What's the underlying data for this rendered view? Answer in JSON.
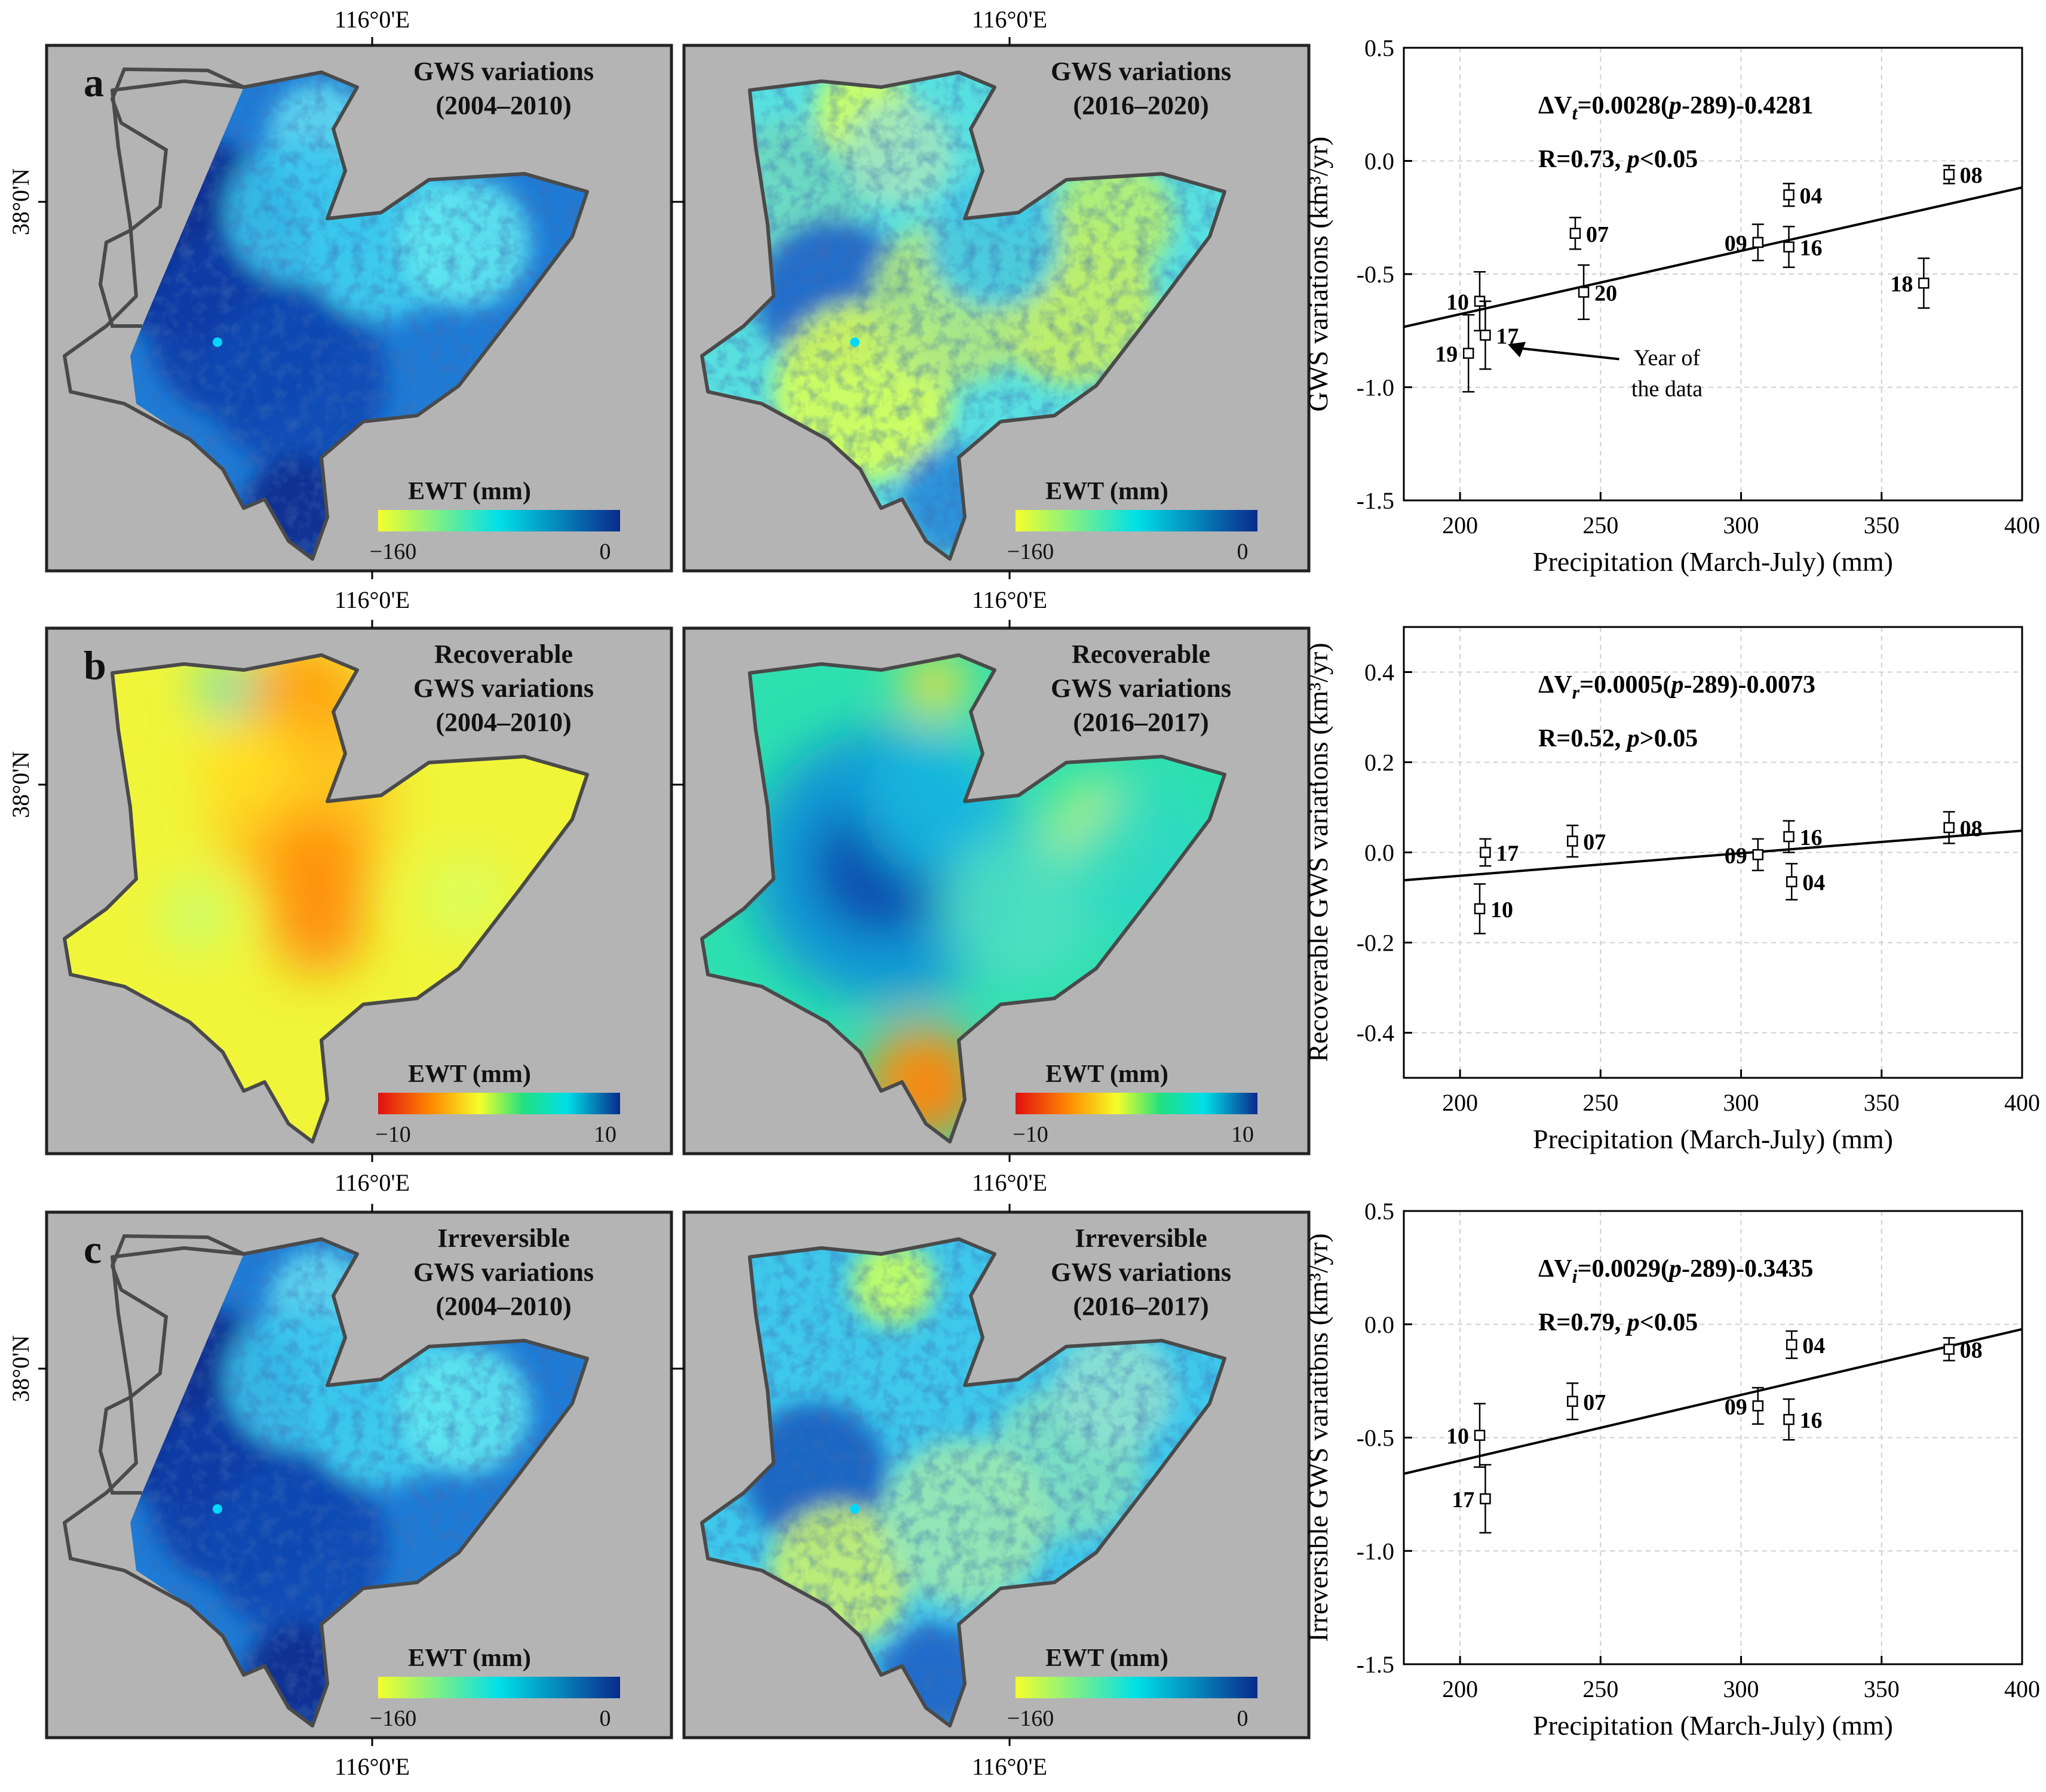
{
  "colors": {
    "map_bg": "#b4b4b4",
    "boundary": "#4a4a4a",
    "panel_border": "#222222",
    "line": "#000000",
    "grid": "#cfcfcf",
    "ewt_deep": "#0a2a8c",
    "ewt_mid": "#00e0e8",
    "ewt_yellow": "#f4ff2a",
    "rec_red": "#e01010",
    "rec_orange": "#ff8a00"
  },
  "rows": [
    {
      "letter": "a",
      "maps": [
        {
          "title_lines": [
            "GWS variations",
            "(2004–2010)"
          ],
          "ewt_label": "EWT (mm)",
          "cb_min": "−160",
          "cb_max": "0",
          "scheme": "gws",
          "pattern": "deep"
        },
        {
          "title_lines": [
            "GWS variations",
            "(2016–2020)"
          ],
          "ewt_label": "EWT (mm)",
          "cb_min": "−160",
          "cb_max": "0",
          "scheme": "gws",
          "pattern": "light"
        }
      ]
    },
    {
      "letter": "b",
      "maps": [
        {
          "title_lines": [
            "Recoverable",
            "GWS variations",
            "(2004–2010)"
          ],
          "ewt_label": "EWT (mm)",
          "cb_min": "−10",
          "cb_max": "10",
          "scheme": "rec",
          "pattern": "recA"
        },
        {
          "title_lines": [
            "Recoverable",
            "GWS variations",
            "(2016–2017)"
          ],
          "ewt_label": "EWT (mm)",
          "cb_min": "−10",
          "cb_max": "10",
          "scheme": "rec",
          "pattern": "recB"
        }
      ]
    },
    {
      "letter": "c",
      "maps": [
        {
          "title_lines": [
            "Irreversible",
            "GWS variations",
            "(2004–2010)"
          ],
          "ewt_label": "EWT (mm)",
          "cb_min": "−160",
          "cb_max": "0",
          "scheme": "gws",
          "pattern": "deep"
        },
        {
          "title_lines": [
            "Irreversible",
            "GWS variations",
            "(2016–2017)"
          ],
          "ewt_label": "EWT (mm)",
          "cb_min": "−160",
          "cb_max": "0",
          "scheme": "gws",
          "pattern": "mid"
        }
      ]
    }
  ],
  "map_axes": {
    "lon_label": "116°0'E",
    "lat_label": "38°0'N"
  },
  "chart_data": [
    {
      "type": "scatter",
      "panel": "a",
      "ylabel": "GWS variations (km³/yr)",
      "xlabel": "Precipitation (March-July) (mm)",
      "xlim": [
        180,
        400
      ],
      "ylim": [
        -1.5,
        0.5
      ],
      "xticks": [
        200,
        250,
        300,
        350,
        400
      ],
      "yticks": [
        -1.5,
        -1.0,
        -0.5,
        0.0,
        0.5
      ],
      "ytick_labels": [
        "-1.5",
        "-1.0",
        "-0.5",
        "0.0",
        "0.5"
      ],
      "grid": true,
      "equation": {
        "prefix": "ΔV",
        "sub": "t",
        "rest": "=0.0028(",
        "p": "p",
        "tail": "-289)-0.4281"
      },
      "stat": {
        "r": "R=0.73, ",
        "p": "p",
        "tail": "<0.05"
      },
      "fit": {
        "slope": 0.0028,
        "x0": 289,
        "intercept": -0.4281
      },
      "points": [
        {
          "label": "04",
          "x": 317,
          "y": -0.15,
          "err": 0.05,
          "side": "right"
        },
        {
          "label": "07",
          "x": 241,
          "y": -0.32,
          "err": 0.07,
          "side": "right"
        },
        {
          "label": "08",
          "x": 374,
          "y": -0.06,
          "err": 0.04,
          "side": "right"
        },
        {
          "label": "09",
          "x": 306,
          "y": -0.36,
          "err": 0.08,
          "side": "left"
        },
        {
          "label": "10",
          "x": 207,
          "y": -0.62,
          "err": 0.13,
          "side": "left"
        },
        {
          "label": "16",
          "x": 317,
          "y": -0.38,
          "err": 0.09,
          "side": "right"
        },
        {
          "label": "17",
          "x": 209,
          "y": -0.77,
          "err": 0.15,
          "side": "right"
        },
        {
          "label": "18",
          "x": 365,
          "y": -0.54,
          "err": 0.11,
          "side": "left"
        },
        {
          "label": "19",
          "x": 203,
          "y": -0.85,
          "err": 0.17,
          "side": "left"
        },
        {
          "label": "20",
          "x": 244,
          "y": -0.58,
          "err": 0.12,
          "side": "right"
        }
      ],
      "annotation": {
        "lines": [
          "Year of",
          "the data"
        ],
        "x": 246,
        "y": -0.86,
        "arrow_to_x": 217,
        "arrow_to_y": -0.81
      }
    },
    {
      "type": "scatter",
      "panel": "b",
      "ylabel": "Recoverable GWS variations (km³/yr)",
      "xlabel": "Precipitation (March-July) (mm)",
      "xlim": [
        180,
        400
      ],
      "ylim": [
        -0.5,
        0.5
      ],
      "xticks": [
        200,
        250,
        300,
        350,
        400
      ],
      "yticks": [
        -0.4,
        -0.2,
        0.0,
        0.2,
        0.4
      ],
      "ytick_labels": [
        "-0.4",
        "-0.2",
        "0.0",
        "0.2",
        "0.4"
      ],
      "grid": true,
      "equation": {
        "prefix": "ΔV",
        "sub": "r",
        "rest": "=0.0005(",
        "p": "p",
        "tail": "-289)-0.0073"
      },
      "stat": {
        "r": "R=0.52, ",
        "p": "p",
        "tail": ">0.05"
      },
      "fit": {
        "slope": 0.0005,
        "x0": 289,
        "intercept": -0.0073
      },
      "points": [
        {
          "label": "04",
          "x": 318,
          "y": -0.065,
          "err": 0.04,
          "side": "right"
        },
        {
          "label": "07",
          "x": 240,
          "y": 0.025,
          "err": 0.035,
          "side": "right"
        },
        {
          "label": "08",
          "x": 374,
          "y": 0.055,
          "err": 0.035,
          "side": "right"
        },
        {
          "label": "09",
          "x": 306,
          "y": -0.005,
          "err": 0.035,
          "side": "left"
        },
        {
          "label": "10",
          "x": 207,
          "y": -0.125,
          "err": 0.055,
          "side": "right"
        },
        {
          "label": "16",
          "x": 317,
          "y": 0.035,
          "err": 0.035,
          "side": "right"
        },
        {
          "label": "17",
          "x": 209,
          "y": 0.0,
          "err": 0.03,
          "side": "right"
        }
      ]
    },
    {
      "type": "scatter",
      "panel": "c",
      "ylabel": "Irreversible GWS variations (km³/yr)",
      "xlabel": "Precipitation (March-July) (mm)",
      "xlim": [
        180,
        400
      ],
      "ylim": [
        -1.5,
        0.5
      ],
      "xticks": [
        200,
        250,
        300,
        350,
        400
      ],
      "yticks": [
        -1.5,
        -1.0,
        -0.5,
        0.0,
        0.5
      ],
      "ytick_labels": [
        "-1.5",
        "-1.0",
        "-0.5",
        "0.0",
        "0.5"
      ],
      "grid": true,
      "equation": {
        "prefix": "ΔV",
        "sub": "i",
        "rest": "=0.0029(",
        "p": "p",
        "tail": "-289)-0.3435"
      },
      "stat": {
        "r": "R=0.79, ",
        "p": "p",
        "tail": "<0.05"
      },
      "fit": {
        "slope": 0.0029,
        "x0": 289,
        "intercept": -0.3435
      },
      "points": [
        {
          "label": "04",
          "x": 318,
          "y": -0.09,
          "err": 0.06,
          "side": "right"
        },
        {
          "label": "07",
          "x": 240,
          "y": -0.34,
          "err": 0.08,
          "side": "right"
        },
        {
          "label": "08",
          "x": 374,
          "y": -0.11,
          "err": 0.05,
          "side": "right"
        },
        {
          "label": "09",
          "x": 306,
          "y": -0.36,
          "err": 0.08,
          "side": "left"
        },
        {
          "label": "10",
          "x": 207,
          "y": -0.49,
          "err": 0.14,
          "side": "left"
        },
        {
          "label": "16",
          "x": 317,
          "y": -0.42,
          "err": 0.09,
          "side": "right"
        },
        {
          "label": "17",
          "x": 209,
          "y": -0.77,
          "err": 0.15,
          "side": "left"
        }
      ]
    }
  ]
}
